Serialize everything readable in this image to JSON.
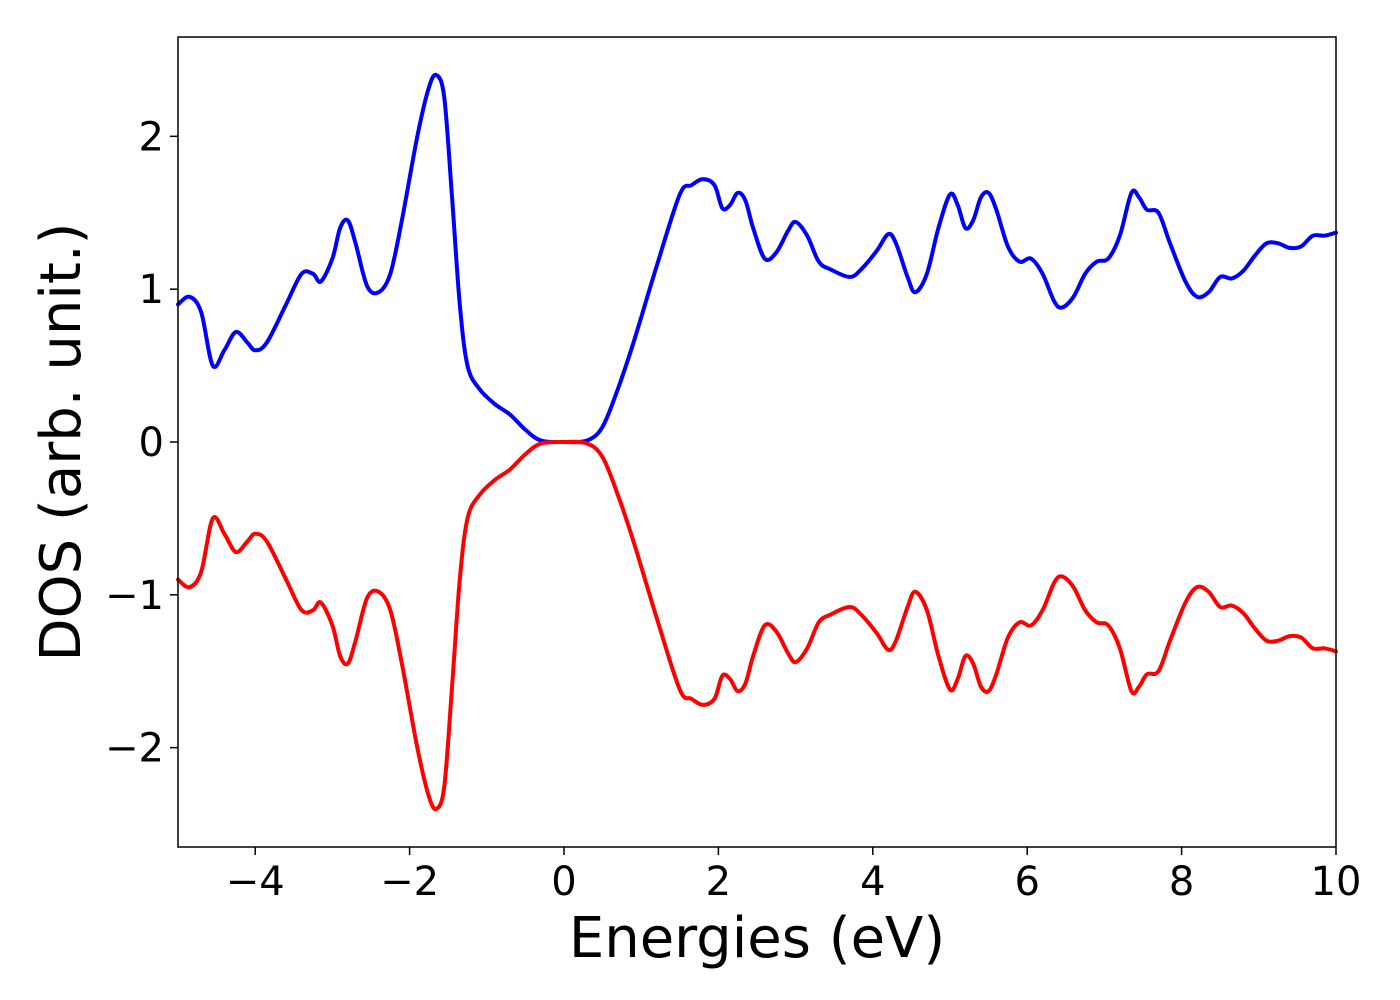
{
  "chart_data": {
    "type": "line",
    "title": "",
    "xlabel": "Energies (eV)",
    "ylabel": "DOS (arb. unit.)",
    "xlim": [
      -5,
      10
    ],
    "ylim": [
      -2.65,
      2.65
    ],
    "xticks": [
      -4,
      -2,
      0,
      2,
      4,
      6,
      8,
      10
    ],
    "xtick_labels": [
      "−4",
      "−2",
      "0",
      "2",
      "4",
      "6",
      "8",
      "10"
    ],
    "yticks": [
      -2,
      -1,
      0,
      1,
      2
    ],
    "ytick_labels": [
      "−2",
      "−1",
      "0",
      "1",
      "2"
    ],
    "grid": false,
    "legend": "none",
    "series": [
      {
        "color": "#0000ff",
        "points": [
          [
            -5.0,
            0.9
          ],
          [
            -4.85,
            0.95
          ],
          [
            -4.7,
            0.85
          ],
          [
            -4.55,
            0.5
          ],
          [
            -4.4,
            0.6
          ],
          [
            -4.25,
            0.72
          ],
          [
            -4.1,
            0.65
          ],
          [
            -4.0,
            0.6
          ],
          [
            -3.85,
            0.65
          ],
          [
            -3.6,
            0.9
          ],
          [
            -3.4,
            1.1
          ],
          [
            -3.25,
            1.1
          ],
          [
            -3.15,
            1.05
          ],
          [
            -3.0,
            1.2
          ],
          [
            -2.9,
            1.4
          ],
          [
            -2.8,
            1.45
          ],
          [
            -2.7,
            1.3
          ],
          [
            -2.55,
            1.02
          ],
          [
            -2.4,
            0.98
          ],
          [
            -2.25,
            1.1
          ],
          [
            -2.1,
            1.45
          ],
          [
            -1.9,
            2.0
          ],
          [
            -1.75,
            2.32
          ],
          [
            -1.65,
            2.4
          ],
          [
            -1.55,
            2.25
          ],
          [
            -1.45,
            1.6
          ],
          [
            -1.35,
            0.9
          ],
          [
            -1.25,
            0.5
          ],
          [
            -1.1,
            0.35
          ],
          [
            -0.9,
            0.25
          ],
          [
            -0.7,
            0.18
          ],
          [
            -0.5,
            0.08
          ],
          [
            -0.3,
            0.01
          ],
          [
            0.0,
            0.0
          ],
          [
            0.3,
            0.01
          ],
          [
            0.5,
            0.1
          ],
          [
            0.7,
            0.35
          ],
          [
            0.9,
            0.65
          ],
          [
            1.2,
            1.15
          ],
          [
            1.5,
            1.62
          ],
          [
            1.65,
            1.68
          ],
          [
            1.8,
            1.72
          ],
          [
            1.95,
            1.68
          ],
          [
            2.05,
            1.53
          ],
          [
            2.15,
            1.55
          ],
          [
            2.25,
            1.63
          ],
          [
            2.35,
            1.58
          ],
          [
            2.45,
            1.4
          ],
          [
            2.6,
            1.2
          ],
          [
            2.75,
            1.24
          ],
          [
            2.9,
            1.38
          ],
          [
            3.0,
            1.44
          ],
          [
            3.15,
            1.35
          ],
          [
            3.3,
            1.18
          ],
          [
            3.45,
            1.13
          ],
          [
            3.7,
            1.08
          ],
          [
            3.85,
            1.13
          ],
          [
            4.05,
            1.25
          ],
          [
            4.2,
            1.36
          ],
          [
            4.3,
            1.3
          ],
          [
            4.45,
            1.08
          ],
          [
            4.55,
            0.98
          ],
          [
            4.7,
            1.1
          ],
          [
            4.85,
            1.4
          ],
          [
            5.0,
            1.62
          ],
          [
            5.1,
            1.55
          ],
          [
            5.2,
            1.4
          ],
          [
            5.3,
            1.45
          ],
          [
            5.4,
            1.6
          ],
          [
            5.5,
            1.63
          ],
          [
            5.6,
            1.52
          ],
          [
            5.75,
            1.28
          ],
          [
            5.9,
            1.18
          ],
          [
            6.05,
            1.2
          ],
          [
            6.2,
            1.1
          ],
          [
            6.35,
            0.92
          ],
          [
            6.45,
            0.88
          ],
          [
            6.6,
            0.95
          ],
          [
            6.75,
            1.1
          ],
          [
            6.9,
            1.18
          ],
          [
            7.05,
            1.2
          ],
          [
            7.2,
            1.35
          ],
          [
            7.35,
            1.63
          ],
          [
            7.45,
            1.6
          ],
          [
            7.55,
            1.52
          ],
          [
            7.7,
            1.5
          ],
          [
            7.85,
            1.3
          ],
          [
            8.05,
            1.05
          ],
          [
            8.2,
            0.95
          ],
          [
            8.35,
            0.98
          ],
          [
            8.5,
            1.08
          ],
          [
            8.65,
            1.07
          ],
          [
            8.8,
            1.12
          ],
          [
            8.95,
            1.22
          ],
          [
            9.1,
            1.3
          ],
          [
            9.25,
            1.3
          ],
          [
            9.4,
            1.27
          ],
          [
            9.55,
            1.28
          ],
          [
            9.7,
            1.35
          ],
          [
            9.85,
            1.35
          ],
          [
            10.0,
            1.37
          ]
        ]
      },
      {
        "color": "#ff0000",
        "points": [
          [
            -5.0,
            -0.9
          ],
          [
            -4.85,
            -0.95
          ],
          [
            -4.7,
            -0.85
          ],
          [
            -4.55,
            -0.5
          ],
          [
            -4.4,
            -0.6
          ],
          [
            -4.25,
            -0.72
          ],
          [
            -4.1,
            -0.65
          ],
          [
            -4.0,
            -0.6
          ],
          [
            -3.85,
            -0.65
          ],
          [
            -3.6,
            -0.9
          ],
          [
            -3.4,
            -1.1
          ],
          [
            -3.25,
            -1.1
          ],
          [
            -3.15,
            -1.05
          ],
          [
            -3.0,
            -1.2
          ],
          [
            -2.9,
            -1.4
          ],
          [
            -2.8,
            -1.45
          ],
          [
            -2.7,
            -1.3
          ],
          [
            -2.55,
            -1.02
          ],
          [
            -2.4,
            -0.98
          ],
          [
            -2.25,
            -1.1
          ],
          [
            -2.1,
            -1.45
          ],
          [
            -1.9,
            -2.0
          ],
          [
            -1.75,
            -2.32
          ],
          [
            -1.65,
            -2.4
          ],
          [
            -1.55,
            -2.25
          ],
          [
            -1.45,
            -1.6
          ],
          [
            -1.35,
            -0.9
          ],
          [
            -1.25,
            -0.5
          ],
          [
            -1.1,
            -0.35
          ],
          [
            -0.9,
            -0.25
          ],
          [
            -0.7,
            -0.18
          ],
          [
            -0.5,
            -0.08
          ],
          [
            -0.3,
            -0.01
          ],
          [
            0.0,
            0.0
          ],
          [
            0.3,
            -0.01
          ],
          [
            0.5,
            -0.1
          ],
          [
            0.7,
            -0.35
          ],
          [
            0.9,
            -0.65
          ],
          [
            1.2,
            -1.15
          ],
          [
            1.5,
            -1.62
          ],
          [
            1.65,
            -1.68
          ],
          [
            1.8,
            -1.72
          ],
          [
            1.95,
            -1.68
          ],
          [
            2.05,
            -1.53
          ],
          [
            2.15,
            -1.55
          ],
          [
            2.25,
            -1.63
          ],
          [
            2.35,
            -1.58
          ],
          [
            2.45,
            -1.4
          ],
          [
            2.6,
            -1.2
          ],
          [
            2.75,
            -1.24
          ],
          [
            2.9,
            -1.38
          ],
          [
            3.0,
            -1.44
          ],
          [
            3.15,
            -1.35
          ],
          [
            3.3,
            -1.18
          ],
          [
            3.45,
            -1.13
          ],
          [
            3.7,
            -1.08
          ],
          [
            3.85,
            -1.13
          ],
          [
            4.05,
            -1.25
          ],
          [
            4.2,
            -1.36
          ],
          [
            4.3,
            -1.3
          ],
          [
            4.45,
            -1.08
          ],
          [
            4.55,
            -0.98
          ],
          [
            4.7,
            -1.1
          ],
          [
            4.85,
            -1.4
          ],
          [
            5.0,
            -1.62
          ],
          [
            5.1,
            -1.55
          ],
          [
            5.2,
            -1.4
          ],
          [
            5.3,
            -1.45
          ],
          [
            5.4,
            -1.6
          ],
          [
            5.5,
            -1.63
          ],
          [
            5.6,
            -1.52
          ],
          [
            5.75,
            -1.28
          ],
          [
            5.9,
            -1.18
          ],
          [
            6.05,
            -1.2
          ],
          [
            6.2,
            -1.1
          ],
          [
            6.35,
            -0.92
          ],
          [
            6.45,
            -0.88
          ],
          [
            6.6,
            -0.95
          ],
          [
            6.75,
            -1.1
          ],
          [
            6.9,
            -1.18
          ],
          [
            7.05,
            -1.2
          ],
          [
            7.2,
            -1.35
          ],
          [
            7.35,
            -1.63
          ],
          [
            7.45,
            -1.6
          ],
          [
            7.55,
            -1.52
          ],
          [
            7.7,
            -1.5
          ],
          [
            7.85,
            -1.3
          ],
          [
            8.05,
            -1.05
          ],
          [
            8.2,
            -0.95
          ],
          [
            8.35,
            -0.98
          ],
          [
            8.5,
            -1.08
          ],
          [
            8.65,
            -1.07
          ],
          [
            8.8,
            -1.12
          ],
          [
            8.95,
            -1.22
          ],
          [
            9.1,
            -1.3
          ],
          [
            9.25,
            -1.3
          ],
          [
            9.4,
            -1.27
          ],
          [
            9.55,
            -1.28
          ],
          [
            9.7,
            -1.35
          ],
          [
            9.85,
            -1.35
          ],
          [
            10.0,
            -1.37
          ]
        ]
      }
    ]
  }
}
